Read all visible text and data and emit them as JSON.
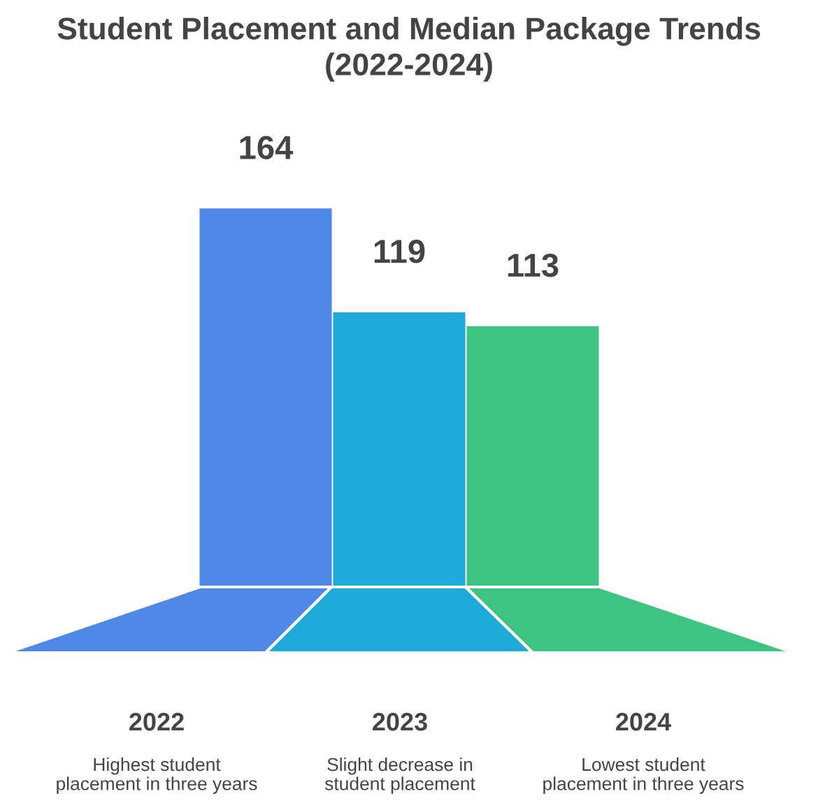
{
  "chart_data": {
    "type": "bar",
    "title": "Student Placement and Median Package Trends\n(2022-2024)",
    "categories": [
      "2022",
      "2023",
      "2024"
    ],
    "values": [
      164,
      119,
      113
    ],
    "colors": [
      "#4f88e6",
      "#1eaad9",
      "#3ec482"
    ],
    "data_labels": true,
    "annotations": [
      "Highest student\nplacement in three years",
      "Slight decrease in\nstudent placement",
      "Lowest student\nplacement in three years"
    ]
  }
}
